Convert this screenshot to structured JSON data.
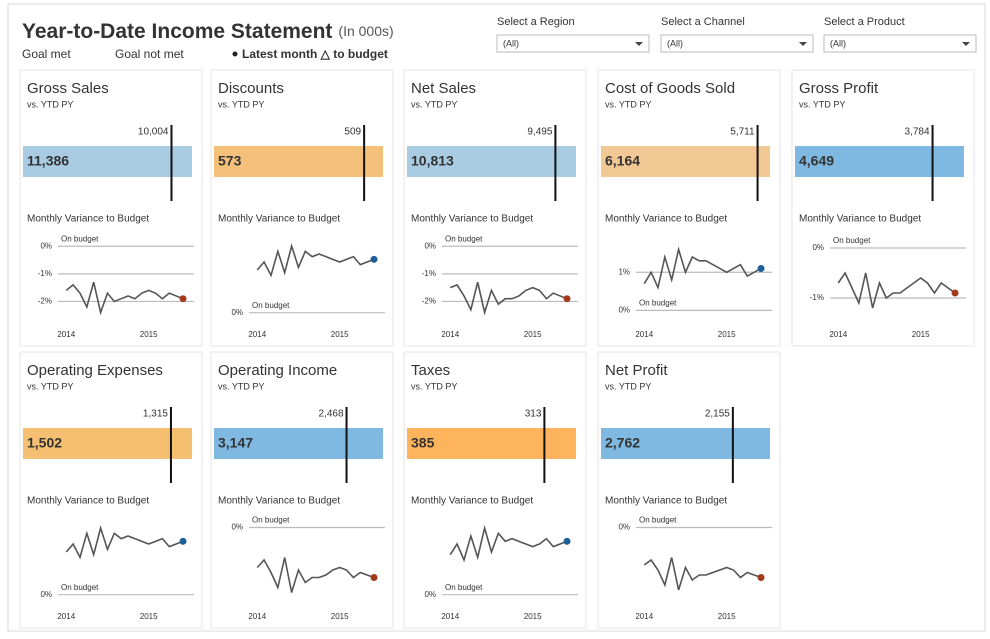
{
  "header": {
    "title": "Year-to-Date Income Statement",
    "title_note": "(In 000s)",
    "legend": [
      {
        "label": "Goal met",
        "color": "#5fa3d6"
      },
      {
        "label": "Goal not met",
        "color": "#f0a050"
      },
      {
        "label": "Latest month △ to budget",
        "color": "#222222"
      }
    ]
  },
  "filters": [
    {
      "label": "Select a Region",
      "value": "(All)"
    },
    {
      "label": "Select a Channel",
      "value": "(All)"
    },
    {
      "label": "Select a Product",
      "value": "(All)"
    }
  ],
  "chart_data": [
    {
      "type": "bullet",
      "title": "Gross Sales",
      "subtitle": "vs. YTD PY",
      "value": 11386,
      "value_label": "11,386",
      "reference": 10004,
      "reference_label": "10,004",
      "color": "#a9cce3",
      "xlim": [
        0,
        11386
      ],
      "variance": {
        "type": "line",
        "title": "Monthly Variance to Budget",
        "annotation": "On budget",
        "color": "#555555",
        "last_color": "#a3391c",
        "x": [
          2014,
          2014.083,
          2014.167,
          2014.25,
          2014.333,
          2014.417,
          2014.5,
          2014.583,
          2014.667,
          2014.75,
          2014.833,
          2014.917,
          2015,
          2015.083,
          2015.167,
          2015.25,
          2015.333,
          2015.417
        ],
        "values": [
          -1.6,
          -1.4,
          -1.7,
          -2.2,
          -1.3,
          -2.4,
          -1.7,
          -2.0,
          -1.9,
          -1.8,
          -1.9,
          -1.7,
          -1.6,
          -1.7,
          -1.9,
          -1.7,
          -1.8,
          -1.9
        ],
        "xlim": [
          2013.9,
          2015.55
        ],
        "xticks": [
          2014,
          2015
        ],
        "ylim": [
          -2.6,
          0.3
        ],
        "yticks": [
          {
            "value": 0,
            "label": "0%"
          },
          {
            "value": -1,
            "label": "-1%"
          },
          {
            "value": -2,
            "label": "-2%"
          }
        ]
      }
    },
    {
      "type": "bullet",
      "title": "Discounts",
      "subtitle": "vs. YTD PY",
      "value": 573,
      "value_label": "573",
      "reference": 509,
      "reference_label": "509",
      "color": "#f5c07a",
      "xlim": [
        0,
        573
      ],
      "variance": {
        "type": "line",
        "title": "Monthly Variance to Budget",
        "annotation": "On budget",
        "color": "#555555",
        "last_color": "#1f5f99",
        "x": [
          2014,
          2014.083,
          2014.167,
          2014.25,
          2014.333,
          2014.417,
          2014.5,
          2014.583,
          2014.667,
          2014.75,
          2014.833,
          2014.917,
          2015,
          2015.083,
          2015.167,
          2015.25,
          2015.333,
          2015.417
        ],
        "values": [
          1.6,
          1.9,
          1.4,
          2.3,
          1.5,
          2.5,
          1.7,
          2.3,
          2.1,
          2.2,
          2.1,
          2.0,
          1.9,
          2.0,
          2.1,
          1.8,
          1.9,
          2.0
        ],
        "xlim": [
          2013.9,
          2015.55
        ],
        "xticks": [
          2014,
          2015
        ],
        "ylim": [
          -0.2,
          2.8
        ],
        "yticks": [
          {
            "value": 0,
            "label": "0%"
          }
        ]
      }
    },
    {
      "type": "bullet",
      "title": "Net Sales",
      "subtitle": "vs. YTD PY",
      "value": 10813,
      "value_label": "10,813",
      "reference": 9495,
      "reference_label": "9,495",
      "color": "#a9cce3",
      "xlim": [
        0,
        10813
      ],
      "variance": {
        "type": "line",
        "title": "Monthly Variance to Budget",
        "annotation": "On budget",
        "color": "#555555",
        "last_color": "#a3391c",
        "x": [
          2014,
          2014.083,
          2014.167,
          2014.25,
          2014.333,
          2014.417,
          2014.5,
          2014.583,
          2014.667,
          2014.75,
          2014.833,
          2014.917,
          2015,
          2015.083,
          2015.167,
          2015.25,
          2015.333,
          2015.417
        ],
        "values": [
          -1.5,
          -1.4,
          -1.8,
          -2.3,
          -1.3,
          -2.4,
          -1.6,
          -2.1,
          -1.9,
          -1.9,
          -1.8,
          -1.6,
          -1.5,
          -1.6,
          -1.9,
          -1.7,
          -1.8,
          -1.9
        ],
        "xlim": [
          2013.9,
          2015.55
        ],
        "xticks": [
          2014,
          2015
        ],
        "ylim": [
          -2.6,
          0.3
        ],
        "yticks": [
          {
            "value": 0,
            "label": "0%"
          },
          {
            "value": -1,
            "label": "-1%"
          },
          {
            "value": -2,
            "label": "-2%"
          }
        ]
      }
    },
    {
      "type": "bullet",
      "title": "Cost of Goods Sold",
      "subtitle": "vs. YTD PY",
      "value": 6164,
      "value_label": "6,164",
      "reference": 5711,
      "reference_label": "5,711",
      "color": "#f2c894",
      "xlim": [
        0,
        6164
      ],
      "variance": {
        "type": "line",
        "title": "Monthly Variance to Budget",
        "annotation": "On budget",
        "color": "#555555",
        "last_color": "#1f5f99",
        "x": [
          2014,
          2014.083,
          2014.167,
          2014.25,
          2014.333,
          2014.417,
          2014.5,
          2014.583,
          2014.667,
          2014.75,
          2014.833,
          2014.917,
          2015,
          2015.083,
          2015.167,
          2015.25,
          2015.333,
          2015.417
        ],
        "values": [
          0.7,
          1.0,
          0.6,
          1.4,
          0.8,
          1.6,
          1.0,
          1.4,
          1.3,
          1.3,
          1.2,
          1.1,
          1.0,
          1.1,
          1.2,
          0.9,
          1.0,
          1.1
        ],
        "xlim": [
          2013.9,
          2015.55
        ],
        "xticks": [
          2014,
          2015
        ],
        "ylim": [
          -0.2,
          1.9
        ],
        "yticks": [
          {
            "value": 1,
            "label": "1%"
          },
          {
            "value": 0,
            "label": "0%"
          }
        ]
      }
    },
    {
      "type": "bullet",
      "title": "Gross Profit",
      "subtitle": "vs. YTD PY",
      "value": 4649,
      "value_label": "4,649",
      "reference": 3784,
      "reference_label": "3,784",
      "color": "#7fb8e0",
      "xlim": [
        0,
        4649
      ],
      "variance": {
        "type": "line",
        "title": "Monthly Variance to Budget",
        "annotation": "On budget",
        "color": "#555555",
        "last_color": "#a3391c",
        "x": [
          2014,
          2014.083,
          2014.167,
          2014.25,
          2014.333,
          2014.417,
          2014.5,
          2014.583,
          2014.667,
          2014.75,
          2014.833,
          2014.917,
          2015,
          2015.083,
          2015.167,
          2015.25,
          2015.333,
          2015.417
        ],
        "values": [
          -0.7,
          -0.5,
          -0.8,
          -1.1,
          -0.5,
          -1.2,
          -0.7,
          -1.0,
          -0.9,
          -0.9,
          -0.8,
          -0.7,
          -0.6,
          -0.7,
          -0.9,
          -0.7,
          -0.8,
          -0.9
        ],
        "xlim": [
          2013.9,
          2015.55
        ],
        "xticks": [
          2014,
          2015
        ],
        "ylim": [
          -1.4,
          0.2
        ],
        "yticks": [
          {
            "value": 0,
            "label": "0%"
          },
          {
            "value": -1,
            "label": "-1%"
          }
        ]
      }
    },
    {
      "type": "bullet",
      "title": "Operating Expenses",
      "subtitle": "vs. YTD PY",
      "value": 1502,
      "value_label": "1,502",
      "reference": 1315,
      "reference_label": "1,315",
      "color": "#f5bf72",
      "xlim": [
        0,
        1502
      ],
      "variance": {
        "type": "line",
        "title": "Monthly Variance to Budget",
        "annotation": "On budget",
        "color": "#555555",
        "last_color": "#1f5f99",
        "x": [
          2014,
          2014.083,
          2014.167,
          2014.25,
          2014.333,
          2014.417,
          2014.5,
          2014.583,
          2014.667,
          2014.75,
          2014.833,
          2014.917,
          2015,
          2015.083,
          2015.167,
          2015.25,
          2015.333,
          2015.417
        ],
        "values": [
          1.6,
          1.9,
          1.4,
          2.3,
          1.5,
          2.5,
          1.7,
          2.3,
          2.1,
          2.2,
          2.1,
          2.0,
          1.9,
          2.0,
          2.1,
          1.8,
          1.9,
          2.0
        ],
        "xlim": [
          2013.9,
          2015.55
        ],
        "xticks": [
          2014,
          2015
        ],
        "ylim": [
          -0.2,
          2.8
        ],
        "yticks": [
          {
            "value": 0,
            "label": "0%"
          }
        ]
      }
    },
    {
      "type": "bullet",
      "title": "Operating Income",
      "subtitle": "vs. YTD PY",
      "value": 3147,
      "value_label": "3,147",
      "reference": 2468,
      "reference_label": "2,468",
      "color": "#7fb8e0",
      "xlim": [
        0,
        3147
      ],
      "variance": {
        "type": "line",
        "title": "Monthly Variance to Budget",
        "annotation": "On budget",
        "color": "#555555",
        "last_color": "#a3391c",
        "x": [
          2014,
          2014.083,
          2014.167,
          2014.25,
          2014.333,
          2014.417,
          2014.5,
          2014.583,
          2014.667,
          2014.75,
          2014.833,
          2014.917,
          2015,
          2015.083,
          2015.167,
          2015.25,
          2015.333,
          2015.417
        ],
        "values": [
          -1.6,
          -1.3,
          -1.8,
          -2.4,
          -1.2,
          -2.6,
          -1.7,
          -2.2,
          -2.0,
          -2.0,
          -1.9,
          -1.7,
          -1.6,
          -1.7,
          -2.0,
          -1.8,
          -1.9,
          -2.0
        ],
        "xlim": [
          2013.9,
          2015.55
        ],
        "xticks": [
          2014,
          2015
        ],
        "ylim": [
          -2.9,
          0.3
        ],
        "yticks": [
          {
            "value": 0,
            "label": "0%"
          }
        ]
      }
    },
    {
      "type": "bullet",
      "title": "Taxes",
      "subtitle": "vs. YTD PY",
      "value": 385,
      "value_label": "385",
      "reference": 313,
      "reference_label": "313",
      "color": "#fdb45c",
      "xlim": [
        0,
        385
      ],
      "variance": {
        "type": "line",
        "title": "Monthly Variance to Budget",
        "annotation": "On budget",
        "color": "#555555",
        "last_color": "#1f5f99",
        "x": [
          2014,
          2014.083,
          2014.167,
          2014.25,
          2014.333,
          2014.417,
          2014.5,
          2014.583,
          2014.667,
          2014.75,
          2014.833,
          2014.917,
          2015,
          2015.083,
          2015.167,
          2015.25,
          2015.333,
          2015.417
        ],
        "values": [
          1.5,
          1.9,
          1.3,
          2.2,
          1.4,
          2.5,
          1.6,
          2.3,
          2.0,
          2.1,
          2.0,
          1.9,
          1.8,
          1.9,
          2.1,
          1.8,
          1.9,
          2.0
        ],
        "xlim": [
          2013.9,
          2015.55
        ],
        "xticks": [
          2014,
          2015
        ],
        "ylim": [
          -0.2,
          2.8
        ],
        "yticks": [
          {
            "value": 0,
            "label": "0%"
          }
        ]
      }
    },
    {
      "type": "bullet",
      "title": "Net Profit",
      "subtitle": "vs. YTD PY",
      "value": 2762,
      "value_label": "2,762",
      "reference": 2155,
      "reference_label": "2,155",
      "color": "#7fb8e0",
      "xlim": [
        0,
        2762
      ],
      "variance": {
        "type": "line",
        "title": "Monthly Variance to Budget",
        "annotation": "On budget",
        "color": "#555555",
        "last_color": "#a3391c",
        "x": [
          2014,
          2014.083,
          2014.167,
          2014.25,
          2014.333,
          2014.417,
          2014.5,
          2014.583,
          2014.667,
          2014.75,
          2014.833,
          2014.917,
          2015,
          2015.083,
          2015.167,
          2015.25,
          2015.333,
          2015.417
        ],
        "values": [
          -1.5,
          -1.3,
          -1.7,
          -2.3,
          -1.2,
          -2.5,
          -1.6,
          -2.1,
          -1.9,
          -1.9,
          -1.8,
          -1.7,
          -1.6,
          -1.7,
          -2.0,
          -1.8,
          -1.9,
          -2.0
        ],
        "xlim": [
          2013.9,
          2015.55
        ],
        "xticks": [
          2014,
          2015
        ],
        "ylim": [
          -2.9,
          0.3
        ],
        "yticks": [
          {
            "value": 0,
            "label": "0%"
          }
        ]
      }
    }
  ]
}
